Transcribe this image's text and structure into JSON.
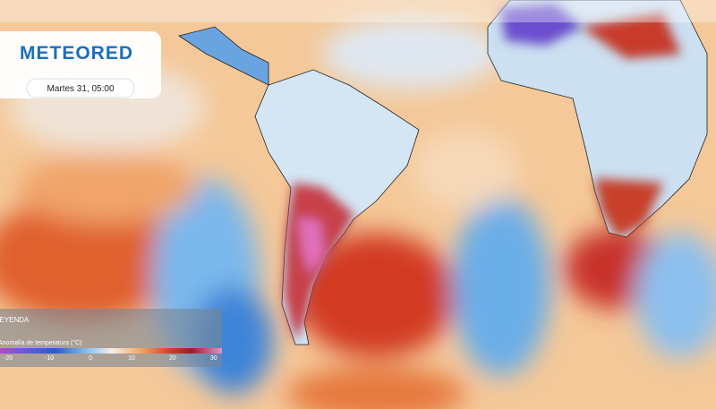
{
  "header": {
    "logo": "METEORED",
    "date": "Martes 31, 05:00"
  },
  "legend": {
    "title": "LEYENDA",
    "label": "Anomalía de temperatura (°C)",
    "range": [
      -22,
      32
    ],
    "ticks": [
      -20,
      -10,
      0,
      10,
      20,
      30
    ]
  }
}
